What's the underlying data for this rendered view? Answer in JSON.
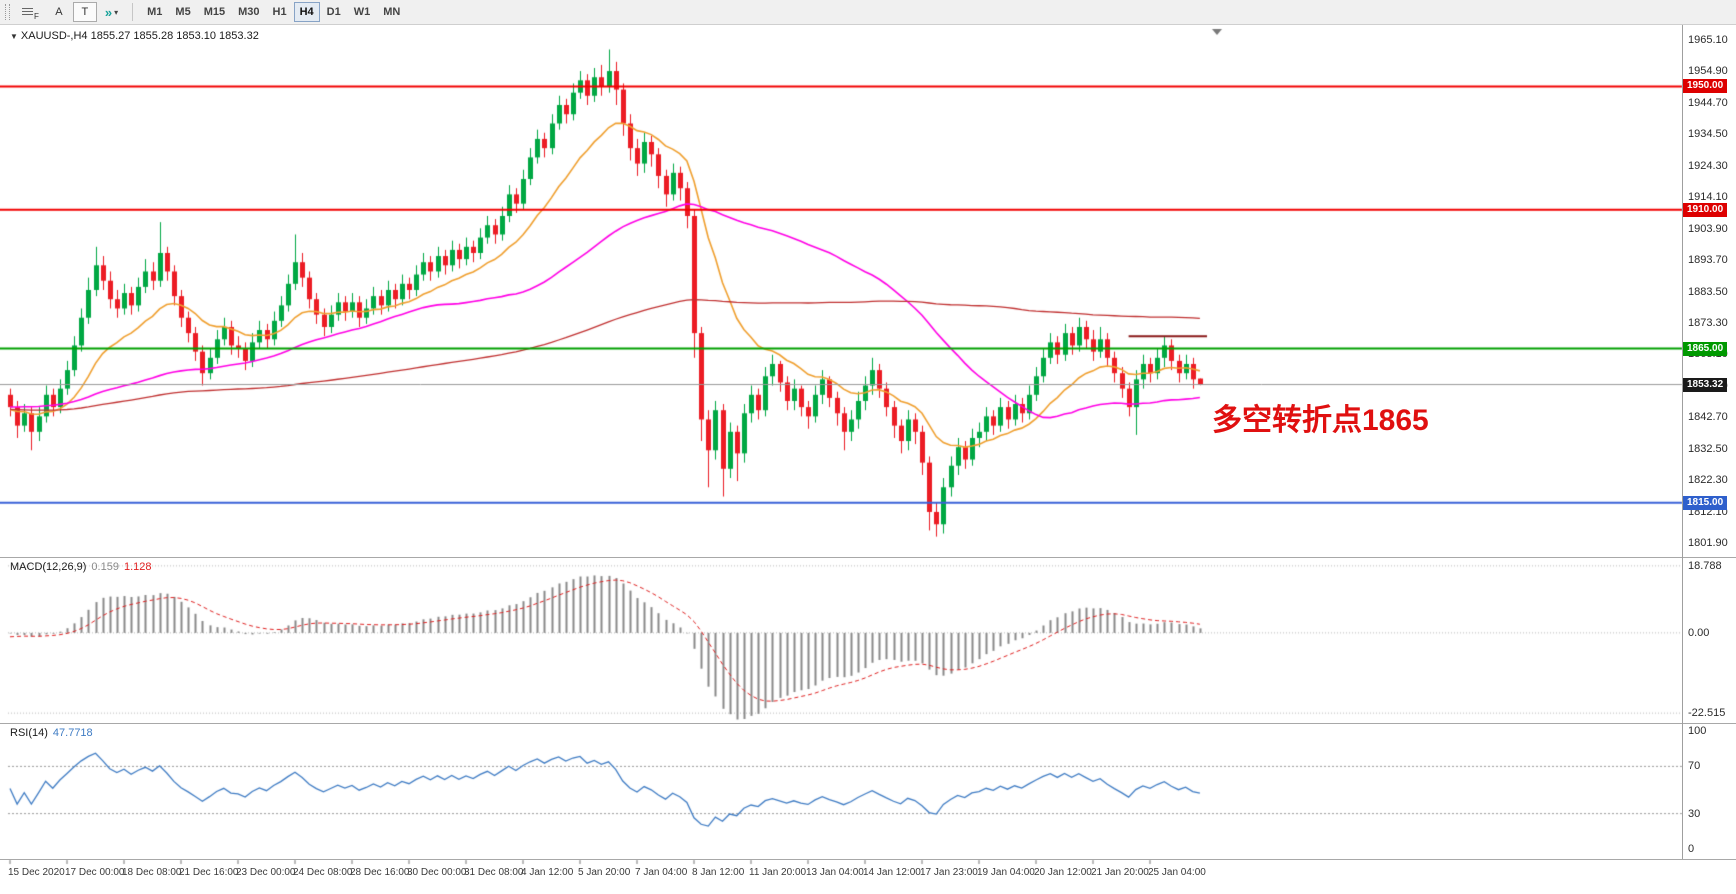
{
  "colors": {
    "bull": "#00A843",
    "bear": "#EC1C24",
    "macd_hist": "#8A8A8A",
    "macd_signal": "#E02020",
    "rsi_line": "#3F7CC4",
    "current_price_line": "#999999",
    "level_dash": "#999999",
    "annotation": "#E01010",
    "axis_text": "#2b2b2b"
  },
  "toolbar": {
    "font_button": "A",
    "text_button": "T",
    "icons": {
      "arrows": "»",
      "caret": "▾",
      "f_badge": "F"
    },
    "timeframes": [
      {
        "label": "M1"
      },
      {
        "label": "M5"
      },
      {
        "label": "M15"
      },
      {
        "label": "M30"
      },
      {
        "label": "H1"
      },
      {
        "label": "H4"
      },
      {
        "label": "D1"
      },
      {
        "label": "W1"
      },
      {
        "label": "MN"
      }
    ],
    "active_timeframe": "H4"
  },
  "chart": {
    "collapse_icon": "▼",
    "symbol_label": "XAUUSD-,H4 1855.27 1855.28 1853.10 1853.32",
    "current_price": "1853.32",
    "annotation": {
      "text": "多空转折点1865",
      "color": "#E01010"
    }
  },
  "price_axis": {
    "labels": [
      {
        "text": "1965.10",
        "value": 1965.1
      },
      {
        "text": "1954.90",
        "value": 1954.9
      },
      {
        "text": "1944.70",
        "value": 1944.7
      },
      {
        "text": "1934.50",
        "value": 1934.5
      },
      {
        "text": "1924.30",
        "value": 1924.3
      },
      {
        "text": "1914.10",
        "value": 1914.1
      },
      {
        "text": "1903.90",
        "value": 1903.9
      },
      {
        "text": "1893.70",
        "value": 1893.7
      },
      {
        "text": "1883.50",
        "value": 1883.5
      },
      {
        "text": "1873.30",
        "value": 1873.3
      },
      {
        "text": "1863.10",
        "value": 1863.1
      },
      {
        "text": "1852.90",
        "value": 1852.9
      },
      {
        "text": "1842.70",
        "value": 1842.7
      },
      {
        "text": "1832.50",
        "value": 1832.5
      },
      {
        "text": "1822.30",
        "value": 1822.3
      },
      {
        "text": "1812.10",
        "value": 1812.1
      },
      {
        "text": "1801.90",
        "value": 1801.9
      }
    ],
    "badges": [
      {
        "text": "1950.00",
        "value": 1950.0,
        "color": "#DD0000"
      },
      {
        "text": "1910.00",
        "value": 1910.0,
        "color": "#DD0000"
      },
      {
        "text": "1865.00",
        "value": 1865.0,
        "color": "#009900"
      },
      {
        "text": "1853.32",
        "value": 1853.32,
        "color": "#1a1a1a"
      },
      {
        "text": "1815.00",
        "value": 1815.0,
        "color": "#2E5FCC"
      }
    ]
  },
  "macd_panel": {
    "title": "MACD(12,26,9)",
    "value": "0.159",
    "signal_value": "1.128",
    "axis_labels": [
      {
        "text": "18.788",
        "value": 18.788
      },
      {
        "text": "0.00",
        "value": 0
      },
      {
        "text": "-22.515",
        "value": -22.515
      }
    ]
  },
  "rsi_panel": {
    "title": "RSI(14)",
    "value": "47.7718",
    "axis_labels": [
      {
        "text": "100",
        "value": 100
      },
      {
        "text": "70",
        "value": 70
      },
      {
        "text": "30",
        "value": 30
      },
      {
        "text": "0",
        "value": 0
      }
    ],
    "levels": [
      70,
      30
    ]
  },
  "time_axis": {
    "labels": [
      {
        "text": "15 Dec 2020",
        "index": 0
      },
      {
        "text": "17 Dec 00:00",
        "index": 8
      },
      {
        "text": "18 Dec 08:00",
        "index": 16
      },
      {
        "text": "21 Dec 16:00",
        "index": 24
      },
      {
        "text": "23 Dec 00:00",
        "index": 32
      },
      {
        "text": "24 Dec 08:00",
        "index": 40
      },
      {
        "text": "28 Dec 16:00",
        "index": 48
      },
      {
        "text": "30 Dec 00:00",
        "index": 56
      },
      {
        "text": "31 Dec 08:00",
        "index": 64
      },
      {
        "text": "4 Jan 12:00",
        "index": 72
      },
      {
        "text": "5 Jan 20:00",
        "index": 80
      },
      {
        "text": "7 Jan 04:00",
        "index": 88
      },
      {
        "text": "8 Jan 12:00",
        "index": 96
      },
      {
        "text": "11 Jan 20:00",
        "index": 104
      },
      {
        "text": "13 Jan 04:00",
        "index": 112
      },
      {
        "text": "14 Jan 12:00",
        "index": 120
      },
      {
        "text": "17 Jan 23:00",
        "index": 128
      },
      {
        "text": "19 Jan 04:00",
        "index": 136
      },
      {
        "text": "20 Jan 12:00",
        "index": 144
      },
      {
        "text": "21 Jan 20:00",
        "index": 152
      },
      {
        "text": "25 Jan 04:00",
        "index": 160
      }
    ]
  },
  "chart_data": {
    "type": "candlestick",
    "symbol": "XAUUSD",
    "timeframe": "H4",
    "ohlc_current": {
      "open": 1855.27,
      "high": 1855.28,
      "low": 1853.1,
      "close": 1853.32
    },
    "hlines": [
      {
        "price": 1950.0,
        "color": "#F20000",
        "width": 2
      },
      {
        "price": 1910.0,
        "color": "#F20000",
        "width": 2
      },
      {
        "price": 1865.0,
        "color": "#00A000",
        "width": 2
      },
      {
        "price": 1815.0,
        "color": "#3A62D8",
        "width": 2
      }
    ],
    "current_price_line": {
      "price": 1853.32,
      "color": "#999999",
      "width": 1
    },
    "segment": {
      "price": 1869,
      "from_index": 157,
      "to_index": 168,
      "color": "#8B1A1A",
      "width": 2
    },
    "moving_averages": [
      {
        "name": "fast-ma",
        "type": "ema",
        "period": 16,
        "color": "#F0A030",
        "width": 1.6
      },
      {
        "name": "mid-ma",
        "type": "sma",
        "period": 50,
        "color": "#FF00E6",
        "width": 1.6
      },
      {
        "name": "slow-ma",
        "type": "sma",
        "period": 130,
        "color": "#C03030",
        "width": 1.3
      }
    ],
    "indicators": {
      "macd": {
        "fast": 12,
        "slow": 26,
        "signal": 9,
        "current": 0.159,
        "signal_current": 1.128,
        "range": [
          -22.515,
          18.788
        ]
      },
      "rsi": {
        "period": 14,
        "current": 47.7718,
        "range": [
          0,
          100
        ],
        "levels": [
          30,
          70
        ]
      }
    },
    "candles": [
      [
        1850,
        1852,
        1843,
        1846
      ],
      [
        1846,
        1848,
        1836,
        1840
      ],
      [
        1840,
        1847,
        1838,
        1844
      ],
      [
        1844,
        1846,
        1832,
        1838
      ],
      [
        1838,
        1846,
        1835,
        1843
      ],
      [
        1843,
        1853,
        1841,
        1850
      ],
      [
        1850,
        1852,
        1843,
        1846
      ],
      [
        1846,
        1855,
        1844,
        1852
      ],
      [
        1852,
        1861,
        1850,
        1858
      ],
      [
        1858,
        1869,
        1856,
        1866
      ],
      [
        1866,
        1878,
        1864,
        1875
      ],
      [
        1875,
        1888,
        1873,
        1884
      ],
      [
        1884,
        1898,
        1882,
        1892
      ],
      [
        1892,
        1895,
        1884,
        1887
      ],
      [
        1887,
        1890,
        1878,
        1881
      ],
      [
        1881,
        1884,
        1875,
        1878
      ],
      [
        1878,
        1886,
        1876,
        1883
      ],
      [
        1883,
        1885,
        1876,
        1879
      ],
      [
        1879,
        1888,
        1877,
        1885
      ],
      [
        1885,
        1894,
        1883,
        1890
      ],
      [
        1890,
        1893,
        1884,
        1887
      ],
      [
        1887,
        1906,
        1885,
        1896
      ],
      [
        1896,
        1898,
        1887,
        1890
      ],
      [
        1890,
        1892,
        1879,
        1882
      ],
      [
        1882,
        1884,
        1872,
        1875
      ],
      [
        1875,
        1877,
        1867,
        1870
      ],
      [
        1870,
        1872,
        1861,
        1864
      ],
      [
        1864,
        1866,
        1853,
        1857
      ],
      [
        1857,
        1865,
        1855,
        1862
      ],
      [
        1862,
        1871,
        1860,
        1868
      ],
      [
        1868,
        1875,
        1866,
        1872
      ],
      [
        1872,
        1874,
        1863,
        1866
      ],
      [
        1866,
        1869,
        1862,
        1865
      ],
      [
        1865,
        1867,
        1858,
        1861
      ],
      [
        1861,
        1870,
        1859,
        1867
      ],
      [
        1867,
        1874,
        1865,
        1871
      ],
      [
        1871,
        1873,
        1865,
        1868
      ],
      [
        1868,
        1877,
        1866,
        1874
      ],
      [
        1874,
        1882,
        1872,
        1879
      ],
      [
        1879,
        1889,
        1877,
        1886
      ],
      [
        1886,
        1902,
        1884,
        1893
      ],
      [
        1893,
        1896,
        1885,
        1888
      ],
      [
        1888,
        1890,
        1878,
        1881
      ],
      [
        1881,
        1883,
        1873,
        1876
      ],
      [
        1876,
        1878,
        1869,
        1872
      ],
      [
        1872,
        1879,
        1870,
        1876
      ],
      [
        1876,
        1883,
        1874,
        1880
      ],
      [
        1880,
        1882,
        1874,
        1877
      ],
      [
        1877,
        1883,
        1875,
        1880
      ],
      [
        1880,
        1882,
        1872,
        1875
      ],
      [
        1875,
        1881,
        1873,
        1878
      ],
      [
        1878,
        1885,
        1876,
        1882
      ],
      [
        1882,
        1884,
        1876,
        1879
      ],
      [
        1879,
        1887,
        1877,
        1884
      ],
      [
        1884,
        1886,
        1878,
        1881
      ],
      [
        1881,
        1889,
        1879,
        1886
      ],
      [
        1886,
        1888,
        1881,
        1884
      ],
      [
        1884,
        1892,
        1882,
        1889
      ],
      [
        1889,
        1896,
        1887,
        1893
      ],
      [
        1893,
        1895,
        1887,
        1890
      ],
      [
        1890,
        1898,
        1888,
        1895
      ],
      [
        1895,
        1897,
        1889,
        1892
      ],
      [
        1892,
        1900,
        1890,
        1897
      ],
      [
        1897,
        1899,
        1891,
        1894
      ],
      [
        1894,
        1901,
        1892,
        1898
      ],
      [
        1898,
        1900,
        1893,
        1896
      ],
      [
        1896,
        1904,
        1894,
        1901
      ],
      [
        1901,
        1908,
        1899,
        1905
      ],
      [
        1905,
        1907,
        1899,
        1902
      ],
      [
        1902,
        1911,
        1900,
        1908
      ],
      [
        1908,
        1918,
        1906,
        1915
      ],
      [
        1915,
        1917,
        1909,
        1912
      ],
      [
        1912,
        1923,
        1910,
        1920
      ],
      [
        1920,
        1930,
        1918,
        1927
      ],
      [
        1927,
        1936,
        1925,
        1933
      ],
      [
        1933,
        1935,
        1927,
        1930
      ],
      [
        1930,
        1941,
        1928,
        1938
      ],
      [
        1938,
        1947,
        1936,
        1944
      ],
      [
        1944,
        1946,
        1938,
        1941
      ],
      [
        1941,
        1951,
        1939,
        1948
      ],
      [
        1948,
        1955,
        1946,
        1952
      ],
      [
        1952,
        1954,
        1944,
        1947
      ],
      [
        1947,
        1956,
        1945,
        1953
      ],
      [
        1953,
        1957,
        1947,
        1950
      ],
      [
        1950,
        1962,
        1948,
        1955
      ],
      [
        1955,
        1958,
        1944,
        1949
      ],
      [
        1949,
        1951,
        1934,
        1938
      ],
      [
        1938,
        1941,
        1926,
        1930
      ],
      [
        1930,
        1933,
        1921,
        1925
      ],
      [
        1925,
        1935,
        1922,
        1932
      ],
      [
        1932,
        1934,
        1924,
        1928
      ],
      [
        1928,
        1930,
        1917,
        1921
      ],
      [
        1921,
        1923,
        1911,
        1915
      ],
      [
        1915,
        1925,
        1913,
        1922
      ],
      [
        1922,
        1924,
        1913,
        1917
      ],
      [
        1917,
        1919,
        1904,
        1908
      ],
      [
        1908,
        1910,
        1862,
        1870
      ],
      [
        1870,
        1872,
        1835,
        1842
      ],
      [
        1842,
        1845,
        1820,
        1832
      ],
      [
        1832,
        1848,
        1829,
        1845
      ],
      [
        1845,
        1847,
        1817,
        1826
      ],
      [
        1826,
        1841,
        1823,
        1838
      ],
      [
        1838,
        1840,
        1822,
        1831
      ],
      [
        1831,
        1847,
        1828,
        1844
      ],
      [
        1844,
        1853,
        1841,
        1850
      ],
      [
        1850,
        1852,
        1842,
        1845
      ],
      [
        1845,
        1859,
        1843,
        1856
      ],
      [
        1856,
        1863,
        1853,
        1860
      ],
      [
        1860,
        1861,
        1851,
        1854
      ],
      [
        1854,
        1856,
        1845,
        1848
      ],
      [
        1848,
        1855,
        1845,
        1852
      ],
      [
        1852,
        1853,
        1843,
        1846
      ],
      [
        1846,
        1848,
        1839,
        1843
      ],
      [
        1843,
        1853,
        1841,
        1850
      ],
      [
        1850,
        1858,
        1847,
        1855
      ],
      [
        1855,
        1856,
        1846,
        1849
      ],
      [
        1849,
        1851,
        1840,
        1844
      ],
      [
        1844,
        1846,
        1832,
        1838
      ],
      [
        1838,
        1845,
        1835,
        1842
      ],
      [
        1842,
        1851,
        1839,
        1848
      ],
      [
        1848,
        1856,
        1845,
        1853
      ],
      [
        1853,
        1862,
        1850,
        1858
      ],
      [
        1858,
        1860,
        1849,
        1852
      ],
      [
        1852,
        1854,
        1843,
        1846
      ],
      [
        1846,
        1848,
        1836,
        1840
      ],
      [
        1840,
        1842,
        1831,
        1835
      ],
      [
        1835,
        1845,
        1832,
        1842
      ],
      [
        1842,
        1844,
        1834,
        1838
      ],
      [
        1838,
        1840,
        1824,
        1828
      ],
      [
        1828,
        1830,
        1806,
        1812
      ],
      [
        1812,
        1815,
        1804,
        1808
      ],
      [
        1808,
        1823,
        1805,
        1820
      ],
      [
        1820,
        1830,
        1817,
        1827
      ],
      [
        1827,
        1836,
        1824,
        1833
      ],
      [
        1833,
        1835,
        1826,
        1829
      ],
      [
        1829,
        1839,
        1827,
        1836
      ],
      [
        1836,
        1841,
        1833,
        1838
      ],
      [
        1838,
        1846,
        1835,
        1843
      ],
      [
        1843,
        1845,
        1837,
        1840
      ],
      [
        1840,
        1849,
        1838,
        1846
      ],
      [
        1846,
        1848,
        1839,
        1842
      ],
      [
        1842,
        1850,
        1840,
        1847
      ],
      [
        1847,
        1849,
        1841,
        1844
      ],
      [
        1844,
        1853,
        1842,
        1850
      ],
      [
        1850,
        1859,
        1848,
        1856
      ],
      [
        1856,
        1865,
        1854,
        1862
      ],
      [
        1862,
        1870,
        1860,
        1867
      ],
      [
        1867,
        1869,
        1860,
        1863
      ],
      [
        1863,
        1873,
        1861,
        1870
      ],
      [
        1870,
        1872,
        1863,
        1866
      ],
      [
        1866,
        1875,
        1864,
        1872
      ],
      [
        1872,
        1874,
        1865,
        1868
      ],
      [
        1868,
        1871,
        1861,
        1864
      ],
      [
        1864,
        1872,
        1862,
        1868
      ],
      [
        1868,
        1870,
        1859,
        1862
      ],
      [
        1862,
        1864,
        1854,
        1857
      ],
      [
        1857,
        1859,
        1849,
        1852
      ],
      [
        1852,
        1854,
        1843,
        1846
      ],
      [
        1846,
        1858,
        1837,
        1855
      ],
      [
        1855,
        1863,
        1852,
        1860
      ],
      [
        1860,
        1862,
        1854,
        1857
      ],
      [
        1857,
        1865,
        1855,
        1862
      ],
      [
        1862,
        1869,
        1859,
        1866
      ],
      [
        1866,
        1868,
        1858,
        1861
      ],
      [
        1861,
        1863,
        1854,
        1857
      ],
      [
        1857,
        1863,
        1855,
        1860
      ],
      [
        1860,
        1862,
        1852,
        1855
      ],
      [
        1855.27,
        1855.28,
        1853.1,
        1853.32
      ]
    ]
  }
}
